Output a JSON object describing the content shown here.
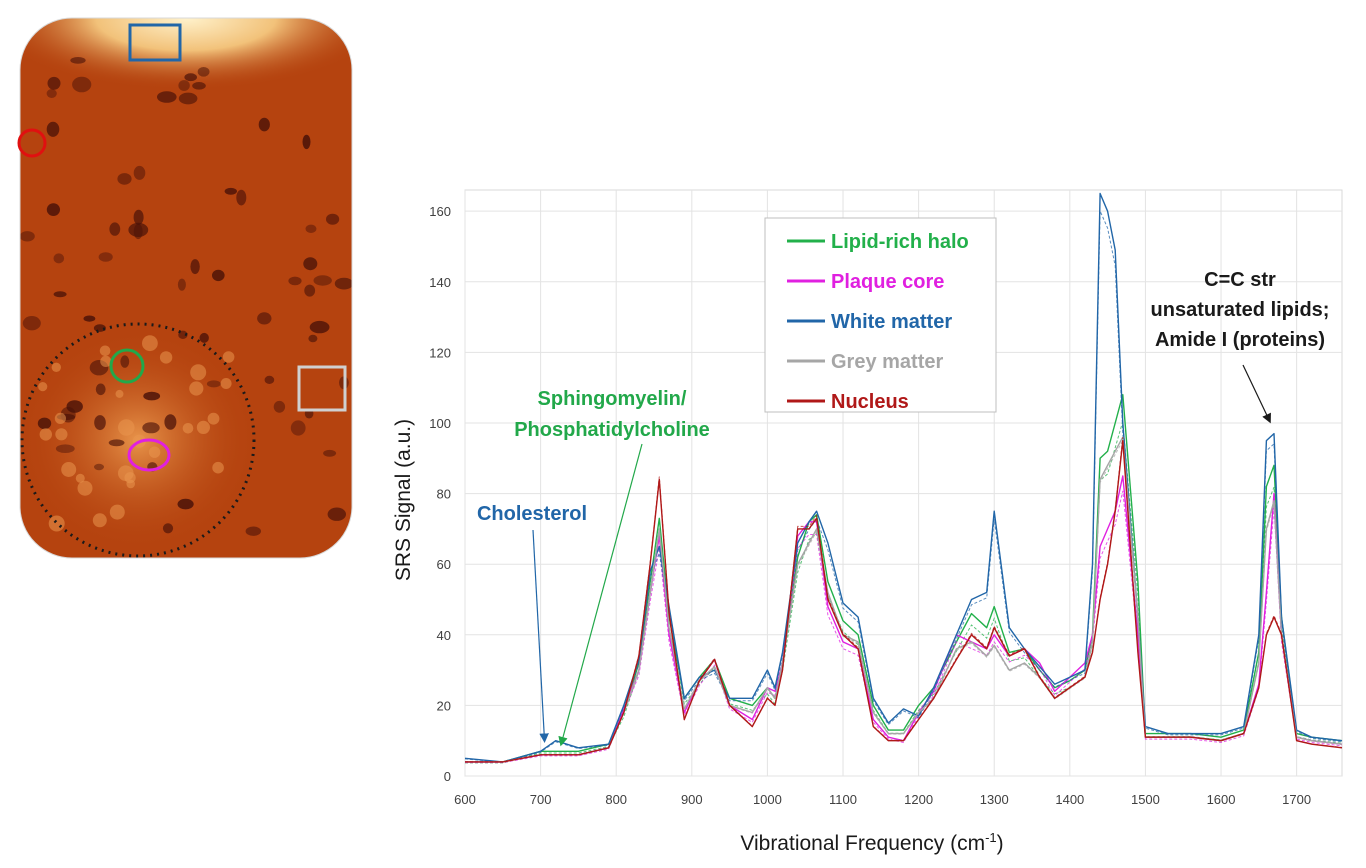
{
  "microscopy": {
    "frame_color": "#b5430f",
    "roi_colors": {
      "white_matter": "#2166a8",
      "cortex": "#e01010",
      "halo": "#22a84a",
      "core": "#e020e0",
      "grey": "#bdbdbd",
      "plaque_outline": "#1a1a1a"
    }
  },
  "chart_data": {
    "type": "line",
    "xlabel_main": "Vibrational Frequency (cm",
    "xlabel_sup": "-1",
    "xlabel_end": ")",
    "ylabel": "SRS Signal (a.u.)",
    "xlim": [
      600,
      1760
    ],
    "ylim": [
      0,
      166
    ],
    "x_ticks": [
      "600",
      "700",
      "800",
      "900",
      "1000",
      "1100",
      "1200",
      "1300",
      "1400",
      "1500",
      "1600",
      "1700"
    ],
    "y_ticks": [
      "0",
      "20",
      "40",
      "60",
      "80",
      "100",
      "120",
      "140",
      "160"
    ],
    "grid": true,
    "legend_position": "top-center",
    "x": [
      600,
      650,
      700,
      720,
      750,
      790,
      810,
      830,
      845,
      857,
      870,
      890,
      910,
      930,
      950,
      980,
      1000,
      1010,
      1020,
      1040,
      1055,
      1065,
      1080,
      1100,
      1120,
      1140,
      1160,
      1180,
      1200,
      1220,
      1250,
      1270,
      1290,
      1300,
      1320,
      1340,
      1360,
      1380,
      1400,
      1420,
      1430,
      1440,
      1450,
      1460,
      1470,
      1490,
      1500,
      1530,
      1560,
      1600,
      1630,
      1650,
      1660,
      1670,
      1680,
      1700,
      1720,
      1760
    ],
    "series": [
      {
        "name": "Lipid-rich halo",
        "color": "#22b04a",
        "values": [
          4,
          4,
          7,
          7,
          7,
          9,
          18,
          32,
          55,
          73,
          45,
          22,
          28,
          33,
          22,
          20,
          25,
          22,
          32,
          62,
          72,
          74,
          55,
          44,
          40,
          20,
          13,
          13,
          20,
          25,
          38,
          46,
          42,
          48,
          35,
          36,
          30,
          25,
          27,
          30,
          40,
          90,
          92,
          100,
          108,
          55,
          12,
          12,
          12,
          11,
          13,
          35,
          82,
          88,
          45,
          12,
          11,
          10
        ]
      },
      {
        "name": "Plaque core",
        "color": "#e020e0",
        "values": [
          4,
          4,
          6,
          6,
          6,
          8,
          19,
          30,
          52,
          68,
          40,
          18,
          27,
          33,
          20,
          16,
          25,
          24,
          32,
          68,
          72,
          72,
          48,
          38,
          36,
          16,
          11,
          10,
          18,
          24,
          40,
          38,
          36,
          40,
          34,
          36,
          32,
          24,
          28,
          32,
          40,
          65,
          70,
          75,
          85,
          40,
          11,
          11,
          11,
          10,
          12,
          26,
          52,
          80,
          40,
          11,
          10,
          9
        ]
      },
      {
        "name": "White matter",
        "color": "#2166a8",
        "values": [
          5,
          4,
          7,
          10,
          8,
          9,
          20,
          33,
          58,
          65,
          48,
          22,
          28,
          30,
          22,
          22,
          30,
          25,
          35,
          66,
          72,
          75,
          66,
          49,
          45,
          22,
          15,
          19,
          17,
          25,
          40,
          50,
          52,
          75,
          42,
          36,
          31,
          26,
          28,
          30,
          60,
          165,
          160,
          149,
          100,
          45,
          14,
          12,
          12,
          12,
          14,
          40,
          95,
          97,
          45,
          13,
          11,
          10
        ]
      },
      {
        "name": "Grey matter",
        "color": "#a6a6a6",
        "values": [
          4,
          4,
          6,
          6,
          6,
          8,
          18,
          30,
          52,
          70,
          42,
          19,
          27,
          31,
          20,
          18,
          25,
          22,
          32,
          60,
          66,
          70,
          52,
          40,
          38,
          18,
          12,
          12,
          18,
          22,
          36,
          38,
          34,
          37,
          30,
          32,
          28,
          22,
          25,
          28,
          38,
          84,
          88,
          92,
          96,
          45,
          11,
          11,
          11,
          10,
          12,
          32,
          70,
          78,
          40,
          11,
          10,
          9
        ]
      },
      {
        "name": "Nucleus",
        "color": "#b01818",
        "values": [
          4,
          4,
          6,
          6,
          6,
          8,
          18,
          34,
          60,
          84,
          46,
          16,
          27,
          33,
          20,
          14,
          22,
          20,
          30,
          70,
          70,
          73,
          50,
          40,
          36,
          14,
          10,
          10,
          16,
          22,
          33,
          40,
          36,
          42,
          34,
          36,
          28,
          22,
          25,
          28,
          35,
          50,
          60,
          75,
          95,
          35,
          11,
          11,
          11,
          10,
          12,
          25,
          40,
          45,
          40,
          10,
          9,
          8
        ]
      }
    ],
    "annotations": {
      "cholesterol": {
        "text": "Cholesterol",
        "color": "#2166a8",
        "x": 705,
        "y": 9
      },
      "sphingo": {
        "line1": "Sphingomyelin/",
        "line2": "Phosphatidylcholine",
        "color": "#22a84a",
        "x": 728,
        "y": 8
      },
      "cc": {
        "line1": "C=C str",
        "line2": "unsaturated lipids;",
        "line3": "Amide I (proteins)",
        "color": "#1a1a1a",
        "x": 1663,
        "y": 100
      }
    }
  }
}
